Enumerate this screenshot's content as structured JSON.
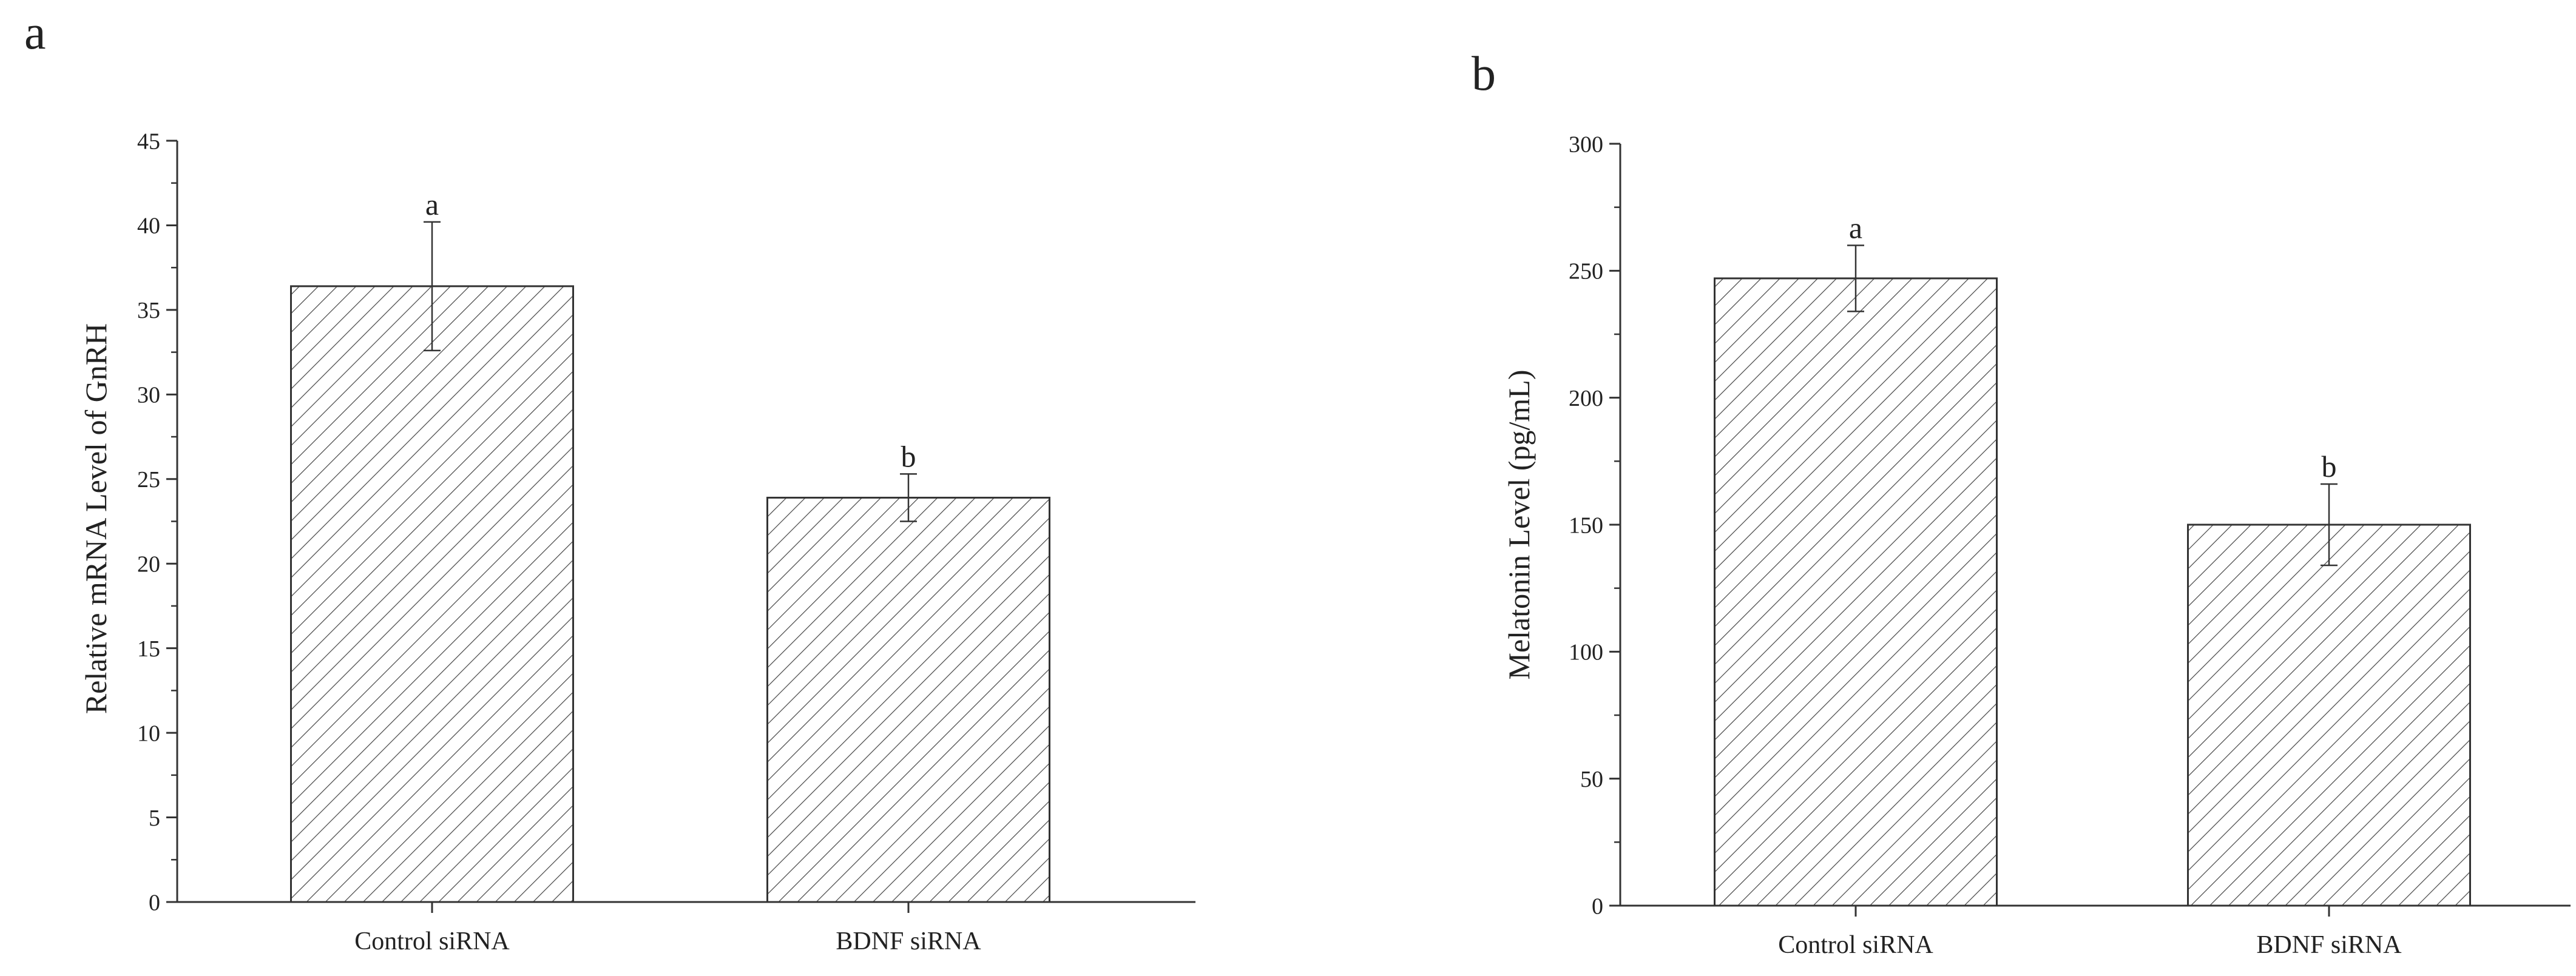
{
  "chart_data": [
    {
      "panel_label": "a",
      "type": "bar",
      "categories": [
        "Control siRNA",
        "BDNF siRNA"
      ],
      "values": [
        36.4,
        23.9
      ],
      "errors": [
        3.8,
        1.4
      ],
      "significance_letters": [
        "a",
        "b"
      ],
      "title": "",
      "xlabel": "",
      "ylabel": "Relative mRNA Level of GnRH",
      "ylim": [
        0,
        45
      ],
      "yticks": [
        0,
        5,
        10,
        15,
        20,
        25,
        30,
        35,
        40,
        45
      ],
      "yticks_labels": [
        "0",
        "5",
        "10",
        "15",
        "20",
        "25",
        "30",
        "35",
        "40",
        "45"
      ],
      "fill_pattern": "diagonal-hatch",
      "grid": false,
      "legend": "none"
    },
    {
      "panel_label": "b",
      "type": "bar",
      "categories": [
        "Control siRNA",
        "BDNF siRNA"
      ],
      "values": [
        247,
        150
      ],
      "errors": [
        13,
        16
      ],
      "significance_letters": [
        "a",
        "b"
      ],
      "title": "",
      "xlabel": "",
      "ylabel": "Melatonin Level (pg/mL)",
      "ylim": [
        0,
        300
      ],
      "yticks": [
        0,
        50,
        100,
        150,
        200,
        250,
        300
      ],
      "yticks_labels": [
        "0",
        "50",
        "100",
        "150",
        "200",
        "250",
        "300"
      ],
      "fill_pattern": "diagonal-hatch",
      "grid": false,
      "legend": "none"
    }
  ],
  "colors": {
    "axis": "#333333",
    "bar_edge": "#333333",
    "hatch": "#444444",
    "bar_fill": "#ffffff",
    "text": "#222222"
  }
}
